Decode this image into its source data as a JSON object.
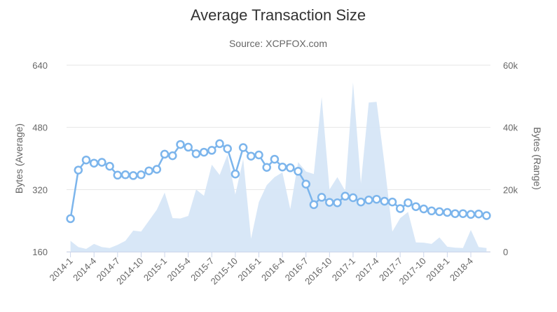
{
  "chart_data": {
    "type": "line",
    "title": "Average Transaction Size",
    "subtitle": "Source: XCPFOX.com",
    "ylabel_left": "Bytes (Average)",
    "ylabel_right": "Bytes (Range)",
    "ylim_left": [
      160,
      640
    ],
    "ylim_right": [
      0,
      60000
    ],
    "yticks_left": [
      "640",
      "480",
      "320",
      "160"
    ],
    "yticks_right": [
      "60k",
      "40k",
      "20k",
      "0"
    ],
    "grid": true,
    "x": [
      "2014-1",
      "2014-2",
      "2014-3",
      "2014-4",
      "2014-5",
      "2014-6",
      "2014-7",
      "2014-8",
      "2014-9",
      "2014-10",
      "2014-11",
      "2014-12",
      "2015-1",
      "2015-2",
      "2015-3",
      "2015-4",
      "2015-5",
      "2015-6",
      "2015-7",
      "2015-8",
      "2015-9",
      "2015-10",
      "2015-11",
      "2015-12",
      "2016-1",
      "2016-2",
      "2016-3",
      "2016-4",
      "2016-5",
      "2016-6",
      "2016-7",
      "2016-8",
      "2016-9",
      "2016-10",
      "2016-11",
      "2016-12",
      "2017-1",
      "2017-2",
      "2017-3",
      "2017-4",
      "2017-5",
      "2017-6",
      "2017-7",
      "2017-8",
      "2017-9",
      "2017-10",
      "2017-11",
      "2017-12",
      "2018-1",
      "2018-2",
      "2018-3",
      "2018-4",
      "2018-5",
      "2018-6"
    ],
    "xtick_labels": [
      "2014-1",
      "2014-4",
      "2014-7",
      "2014-10",
      "2015-1",
      "2015-4",
      "2015-7",
      "2015-10",
      "2016-1",
      "2016-4",
      "2016-7",
      "2016-10",
      "2017-1",
      "2017-4",
      "2017-7",
      "2017-10",
      "2018-1",
      "2018-4"
    ],
    "series": [
      {
        "axis": "left",
        "type": "line",
        "color": "#7cb5ec",
        "values": [
          245,
          370,
          396,
          388,
          390,
          380,
          357,
          358,
          356,
          358,
          368,
          372,
          411,
          407,
          436,
          429,
          412,
          416,
          421,
          438,
          425,
          360,
          428,
          406,
          409,
          377,
          398,
          378,
          376,
          367,
          334,
          281,
          300,
          287,
          286,
          303,
          299,
          288,
          293,
          295,
          290,
          288,
          271,
          286,
          276,
          270,
          265,
          263,
          261,
          258,
          258,
          256,
          257,
          253
        ]
      },
      {
        "axis": "right",
        "type": "area",
        "color": "#d6e6f7",
        "values": [
          3500,
          1500,
          900,
          2500,
          1500,
          1200,
          2200,
          3500,
          6800,
          6500,
          10000,
          13500,
          19000,
          10800,
          10700,
          11500,
          20000,
          18000,
          28000,
          24700,
          31200,
          18400,
          29800,
          4200,
          16000,
          21400,
          24000,
          25500,
          13700,
          28800,
          25800,
          25000,
          49800,
          20000,
          24000,
          19600,
          54500,
          22000,
          48000,
          48200,
          28200,
          6500,
          10800,
          12800,
          3000,
          2900,
          2500,
          4600,
          1600,
          1300,
          1200,
          7000,
          1500,
          1200
        ]
      }
    ]
  }
}
